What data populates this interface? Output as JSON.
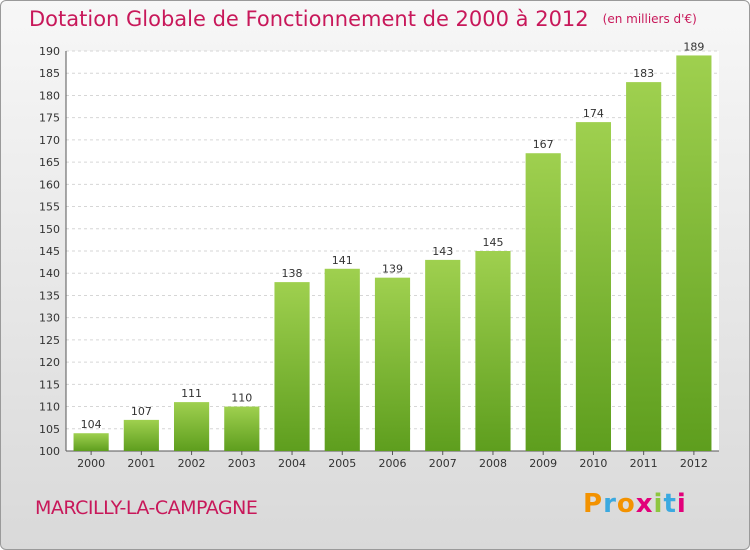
{
  "title": "Dotation Globale de Fonctionnement de 2000 à 2012",
  "unit": "(en milliers d'€)",
  "commune": "MARCILLY-LA-CAMPAGNE",
  "logo": {
    "letters": [
      "P",
      "r",
      "o",
      "x",
      "i",
      "t",
      "i"
    ],
    "colors": [
      "#f39200",
      "#3aa9e0",
      "#f39200",
      "#e2007a",
      "#8dc63f",
      "#3aa9e0",
      "#e2007a"
    ]
  },
  "colors": {
    "title": "#c8185a",
    "bar_light": "#9fd04f",
    "bar_dark": "#5e9e1e"
  },
  "chart_data": {
    "type": "bar",
    "categories": [
      "2000",
      "2001",
      "2002",
      "2003",
      "2004",
      "2005",
      "2006",
      "2007",
      "2008",
      "2009",
      "2010",
      "2011",
      "2012"
    ],
    "values": [
      104,
      107,
      111,
      110,
      138,
      141,
      139,
      143,
      145,
      167,
      174,
      183,
      189
    ],
    "ylim": [
      100,
      190
    ],
    "yticks": [
      100,
      105,
      110,
      115,
      120,
      125,
      130,
      135,
      140,
      145,
      150,
      155,
      160,
      165,
      170,
      175,
      180,
      185,
      190
    ],
    "grid": true
  }
}
